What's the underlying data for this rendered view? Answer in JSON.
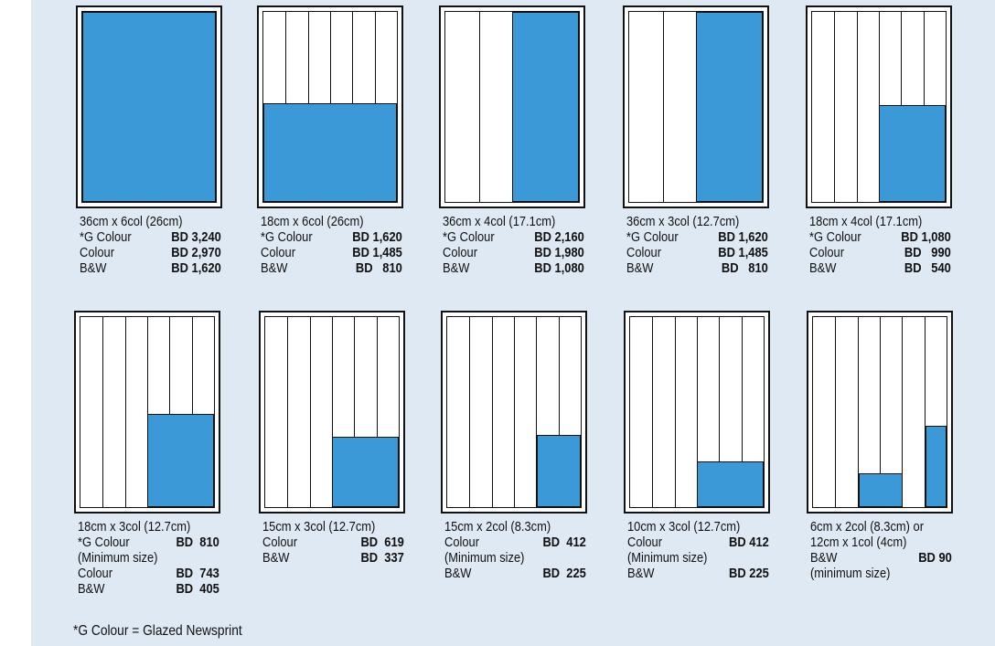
{
  "row1": [
    {
      "size": "36cm x 6col (26cm)",
      "prices": [
        {
          "label": "*G Colour",
          "price": "BD 3,240"
        },
        {
          "label": "Colour",
          "price": "BD 2,970"
        },
        {
          "label": "B&W",
          "price": "BD 1,620"
        }
      ]
    },
    {
      "size": "18cm x 6col (26cm)",
      "prices": [
        {
          "label": "*G Colour",
          "price": "BD 1,620"
        },
        {
          "label": "Colour",
          "price": "BD 1,485"
        },
        {
          "label": "B&W",
          "price": "BD   810"
        }
      ]
    },
    {
      "size": "36cm x 4col (17.1cm)",
      "prices": [
        {
          "label": "*G Colour",
          "price": "BD 2,160"
        },
        {
          "label": "Colour",
          "price": "BD 1,980"
        },
        {
          "label": "B&W",
          "price": "BD 1,080"
        }
      ]
    },
    {
      "size": "36cm x 3col (12.7cm)",
      "prices": [
        {
          "label": "*G Colour",
          "price": "BD 1,620"
        },
        {
          "label": "Colour",
          "price": "BD 1,485"
        },
        {
          "label": "B&W",
          "price": "BD   810"
        }
      ]
    },
    {
      "size": "18cm x 4col (17.1cm)",
      "prices": [
        {
          "label": "*G Colour",
          "price": "BD 1,080"
        },
        {
          "label": "Colour",
          "price": "BD   990"
        },
        {
          "label": "B&W",
          "price": "BD   540"
        }
      ]
    }
  ],
  "row2": [
    {
      "size": "18cm x 3col (12.7cm)",
      "prices": [
        {
          "label": "*G Colour",
          "price": "BD  810"
        },
        {
          "label": "(Minimum size)",
          "price": ""
        },
        {
          "label": "Colour",
          "price": "BD  743"
        },
        {
          "label": "B&W",
          "price": "BD  405"
        }
      ]
    },
    {
      "size": "15cm x 3col (12.7cm)",
      "prices": [
        {
          "label": "Colour",
          "price": "BD  619"
        },
        {
          "label": "B&W",
          "price": "BD  337"
        }
      ]
    },
    {
      "size": "15cm x 2col (8.3cm)",
      "prices": [
        {
          "label": "Colour",
          "price": "BD  412"
        },
        {
          "label": "(Minimum size)",
          "price": ""
        },
        {
          "label": "B&W",
          "price": "BD  225"
        }
      ]
    },
    {
      "size": "10cm x 3col (12.7cm)",
      "prices": [
        {
          "label": "Colour",
          "price": "BD 412"
        },
        {
          "label": "(Minimum size)",
          "price": ""
        },
        {
          "label": "B&W",
          "price": "BD 225"
        }
      ]
    },
    {
      "size": "6cm x 2col (8.3cm) or",
      "prices": [
        {
          "label": "12cm x 1col (4cm)",
          "price": ""
        },
        {
          "label": "B&W",
          "price": "BD 90"
        },
        {
          "label": "(minimum size)",
          "price": ""
        }
      ]
    }
  ],
  "footnote": "*G Colour = Glazed Newsprint",
  "colors": {
    "panel": "#dfe9f4",
    "ad": "#3a99d6"
  }
}
